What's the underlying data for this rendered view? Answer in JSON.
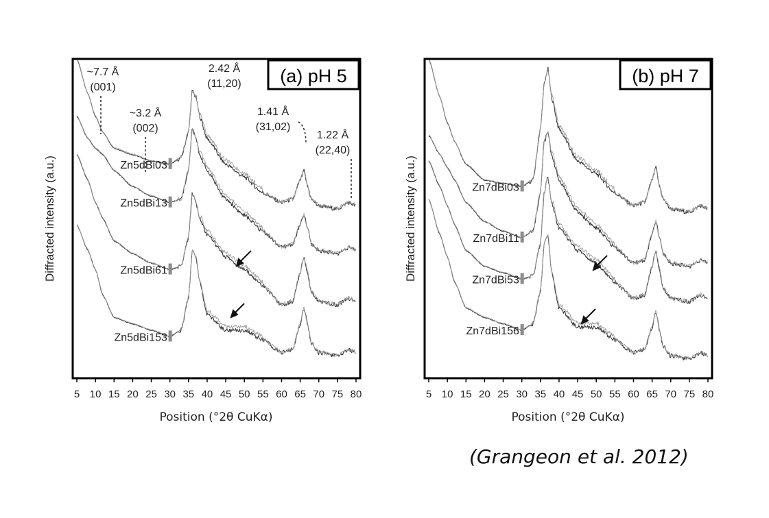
{
  "citation": "(Grangeon et al. 2012)",
  "chart_data": [
    {
      "type": "line",
      "title": "(a) pH 5",
      "xlabel": "Position (°2θ CuKα)",
      "ylabel": "Diffracted intensity (a.u.)",
      "xlim": [
        5,
        80
      ],
      "xticks": [
        5,
        10,
        15,
        20,
        25,
        30,
        35,
        40,
        45,
        50,
        55,
        60,
        65,
        70,
        75,
        80
      ],
      "ylim": [
        0,
        100
      ],
      "series": [
        {
          "name": "Zn5dBi03",
          "x": [
            5,
            8,
            10,
            12,
            15,
            20,
            25,
            30,
            33,
            35,
            36,
            37,
            38,
            40,
            45,
            50,
            55,
            60,
            63,
            65,
            66,
            67,
            68,
            70,
            75,
            78,
            80
          ],
          "y": [
            100,
            89,
            82,
            77,
            72,
            70,
            68,
            67,
            69,
            77,
            90,
            88,
            82,
            75,
            67,
            63,
            58,
            55,
            56,
            62,
            65,
            60,
            56,
            54,
            53,
            55,
            54
          ]
        },
        {
          "name": "Zn5dBi13",
          "x": [
            5,
            8,
            10,
            12,
            15,
            20,
            25,
            30,
            33,
            35,
            36,
            37,
            38,
            40,
            45,
            50,
            55,
            60,
            63,
            65,
            66,
            67,
            68,
            70,
            75,
            78,
            80
          ],
          "y": [
            82,
            75,
            72,
            70,
            65,
            60,
            57,
            55,
            56,
            65,
            78,
            75,
            70,
            65,
            56,
            51,
            46,
            41,
            42,
            48,
            51,
            47,
            42,
            40,
            39,
            41,
            40
          ]
        },
        {
          "name": "Zn5dBi61",
          "x": [
            5,
            8,
            10,
            12,
            15,
            20,
            25,
            30,
            33,
            35,
            36,
            37,
            38,
            40,
            45,
            50,
            55,
            60,
            63,
            65,
            66,
            67,
            68,
            70,
            75,
            78,
            80
          ],
          "y": [
            70,
            62,
            55,
            50,
            43,
            39,
            36,
            34,
            35,
            44,
            58,
            55,
            50,
            45,
            38,
            34,
            29,
            23,
            24,
            33,
            38,
            33,
            27,
            24,
            23,
            25,
            24
          ]
        },
        {
          "name": "Zn5dBi153",
          "x": [
            5,
            8,
            10,
            12,
            15,
            20,
            25,
            30,
            33,
            35,
            36,
            37,
            38,
            40,
            45,
            50,
            55,
            60,
            63,
            65,
            66,
            67,
            68,
            70,
            75,
            78,
            80
          ],
          "y": [
            48,
            40,
            34,
            26,
            19,
            17,
            15,
            13,
            15,
            25,
            40,
            38,
            30,
            20,
            15,
            15,
            12,
            8,
            9,
            17,
            22,
            17,
            11,
            8,
            7,
            9,
            8
          ]
        }
      ],
      "annotations": [
        "~7.7 Å (001)",
        "~3.2 Å (002)",
        "2.42 Å (11,20)",
        "1.41 Å (31,02)",
        "1.22 Å (22,40)"
      ]
    },
    {
      "type": "line",
      "title": "(b) pH 7",
      "xlabel": "Position (°2θ CuKα)",
      "ylabel": "Diffracted intensity (a.u.)",
      "xlim": [
        5,
        80
      ],
      "xticks": [
        5,
        10,
        15,
        20,
        25,
        30,
        35,
        40,
        45,
        50,
        55,
        60,
        65,
        70,
        75,
        80
      ],
      "ylim": [
        0,
        100
      ],
      "series": [
        {
          "name": "Zn7dBi03",
          "x": [
            5,
            8,
            10,
            12,
            15,
            20,
            25,
            30,
            33,
            35,
            36,
            37,
            38,
            40,
            45,
            50,
            55,
            60,
            63,
            65,
            66,
            67,
            68,
            70,
            75,
            78,
            80
          ],
          "y": [
            100,
            88,
            80,
            74,
            67,
            62,
            61,
            60,
            62,
            78,
            92,
            97,
            88,
            78,
            68,
            64,
            58,
            54,
            55,
            62,
            66,
            60,
            56,
            53,
            52,
            54,
            53
          ]
        },
        {
          "name": "Zn7dBi11",
          "x": [
            5,
            8,
            10,
            12,
            15,
            20,
            25,
            30,
            33,
            35,
            36,
            37,
            38,
            40,
            45,
            50,
            55,
            60,
            63,
            65,
            66,
            67,
            68,
            70,
            75,
            78,
            80
          ],
          "y": [
            76,
            70,
            66,
            62,
            55,
            49,
            46,
            44,
            46,
            58,
            74,
            77,
            70,
            62,
            52,
            47,
            41,
            36,
            37,
            45,
            49,
            44,
            39,
            36,
            35,
            37,
            36
          ]
        },
        {
          "name": "Zn7dBi53",
          "x": [
            5,
            8,
            10,
            12,
            15,
            20,
            25,
            30,
            33,
            35,
            36,
            37,
            38,
            40,
            45,
            50,
            55,
            60,
            63,
            65,
            66,
            67,
            68,
            70,
            75,
            78,
            80
          ],
          "y": [
            68,
            60,
            54,
            48,
            40,
            35,
            33,
            31,
            32,
            42,
            58,
            63,
            55,
            47,
            40,
            36,
            30,
            25,
            26,
            35,
            40,
            34,
            28,
            25,
            24,
            26,
            25
          ]
        },
        {
          "name": "Zn7dBi156",
          "x": [
            5,
            8,
            10,
            12,
            15,
            20,
            25,
            30,
            33,
            35,
            36,
            37,
            38,
            40,
            45,
            50,
            55,
            60,
            63,
            65,
            66,
            67,
            68,
            70,
            75,
            78,
            80
          ],
          "y": [
            56,
            45,
            38,
            30,
            22,
            19,
            17,
            15,
            17,
            27,
            42,
            45,
            33,
            22,
            16,
            16,
            12,
            8,
            9,
            16,
            21,
            15,
            10,
            7,
            6,
            8,
            7
          ]
        }
      ]
    }
  ]
}
